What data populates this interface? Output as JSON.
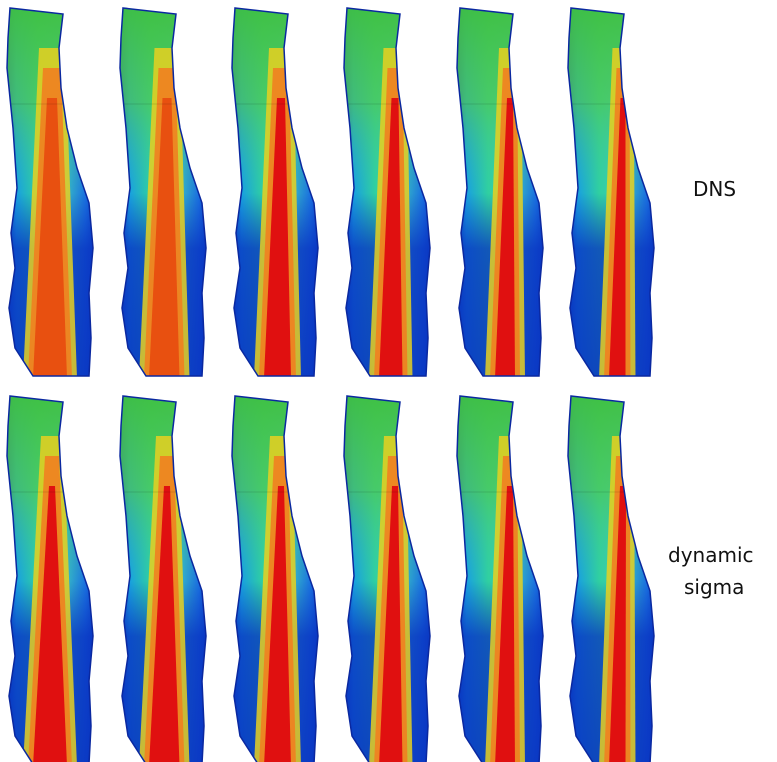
{
  "rows": [
    {
      "label_lines": [
        "DNS"
      ]
    },
    {
      "label_lines": [
        "dynamic",
        "sigma"
      ]
    }
  ]
}
